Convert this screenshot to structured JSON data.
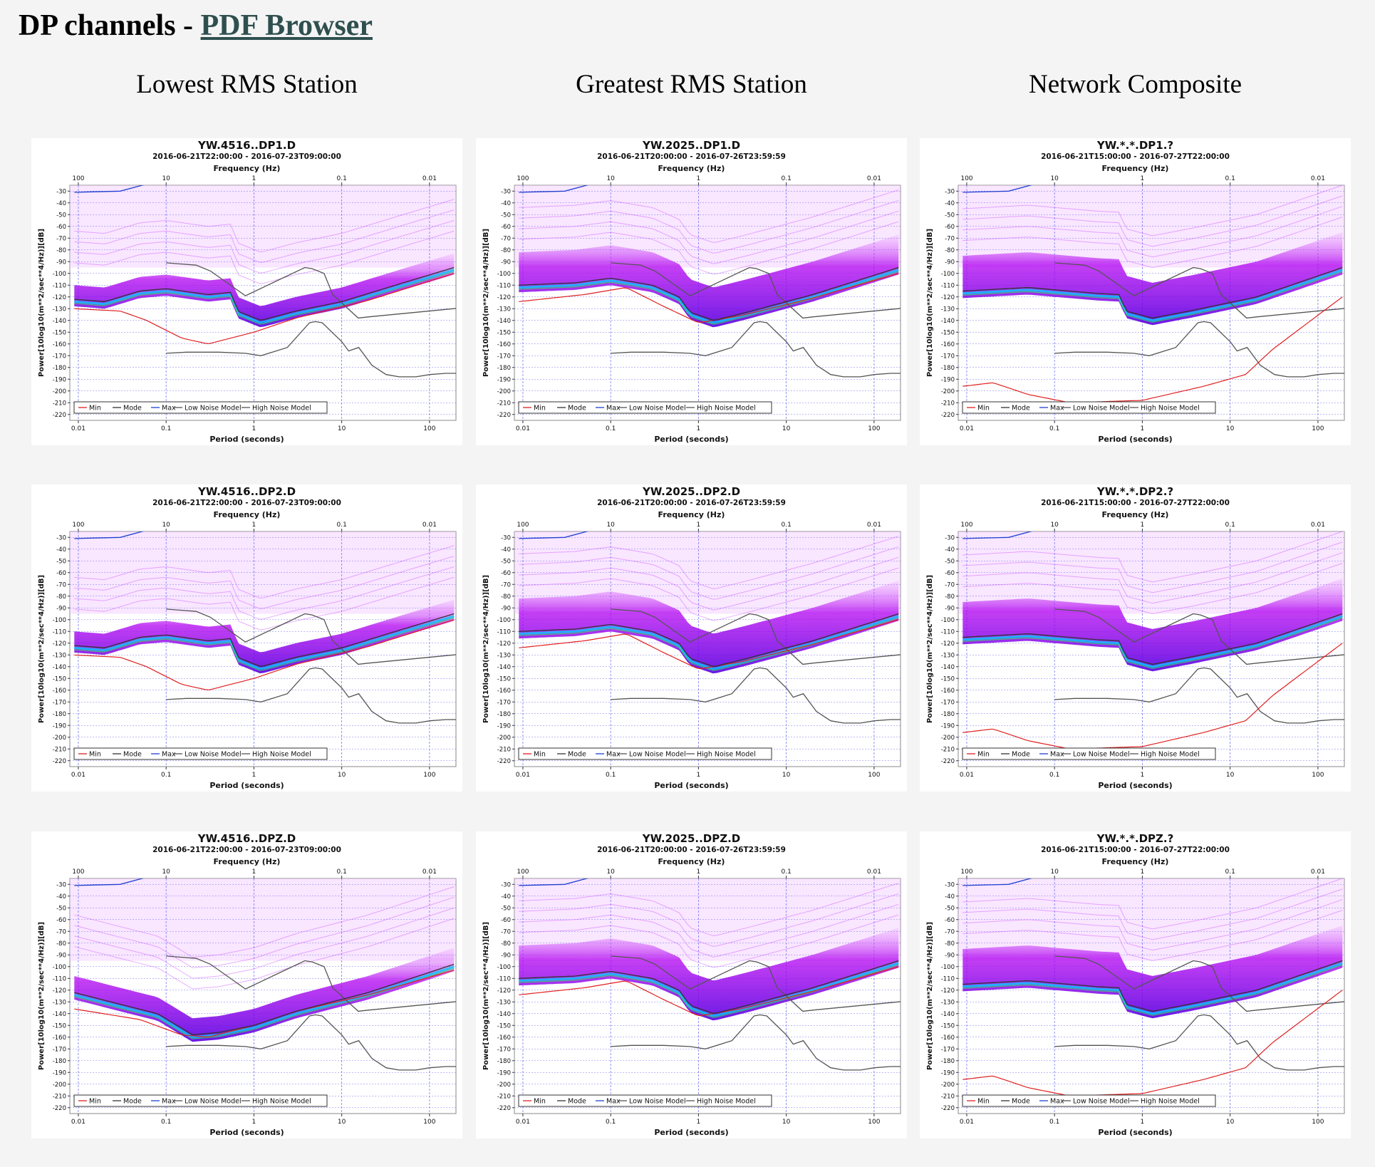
{
  "header": {
    "title": "DP channels - ",
    "link_label": "PDF Browser"
  },
  "columns": [
    "Lowest RMS Station",
    "Greatest RMS Station",
    "Network Composite"
  ],
  "colors": {
    "min": "#e02020",
    "mode": "#333333",
    "max": "#2040d0",
    "model": "#555555",
    "grid": "#7777ee",
    "pdf": "#a000f0"
  },
  "chart_data": [
    {
      "type": "line",
      "kind": "station-low",
      "title": "YW.4516..DP1.D",
      "subtitle": "2016-06-21T22:00:00 - 2016-07-23T09:00:00"
    },
    {
      "type": "line",
      "kind": "station-high",
      "title": "YW.2025..DP1.D",
      "subtitle": "2016-06-21T20:00:00 - 2016-07-26T23:59:59"
    },
    {
      "type": "line",
      "kind": "composite",
      "title": "YW.*.*.DP1.?",
      "subtitle": "2016-06-21T15:00:00 - 2016-07-27T22:00:00"
    },
    {
      "type": "line",
      "kind": "station-low",
      "title": "YW.4516..DP2.D",
      "subtitle": "2016-06-21T22:00:00 - 2016-07-23T09:00:00"
    },
    {
      "type": "line",
      "kind": "station-high",
      "title": "YW.2025..DP2.D",
      "subtitle": "2016-06-21T20:00:00 - 2016-07-26T23:59:59"
    },
    {
      "type": "line",
      "kind": "composite",
      "title": "YW.*.*.DP2.?",
      "subtitle": "2016-06-21T15:00:00 - 2016-07-27T22:00:00"
    },
    {
      "type": "line",
      "kind": "station-lowz",
      "title": "YW.4516..DPZ.D",
      "subtitle": "2016-06-21T22:00:00 - 2016-07-23T09:00:00"
    },
    {
      "type": "line",
      "kind": "station-high",
      "title": "YW.2025..DPZ.D",
      "subtitle": "2016-06-21T20:00:00 - 2016-07-26T23:59:59"
    },
    {
      "type": "line",
      "kind": "composite",
      "title": "YW.*.*.DPZ.?",
      "subtitle": "2016-06-21T15:00:00 - 2016-07-27T22:00:00"
    }
  ],
  "axes": {
    "xlabel": "Period (seconds)",
    "x2label": "Frequency (Hz)",
    "ylabel": "Power[10log10(m**2/sec**4/Hz)][dB]",
    "xlim": [
      0.008,
      200
    ],
    "ylim": [
      -225,
      -25
    ],
    "x_scale": "log",
    "grid": true,
    "x_ticks": [
      "0.01",
      "0.1",
      "1",
      "10",
      "100"
    ],
    "x2_ticks": [
      "100",
      "10",
      "1",
      "0.1",
      "0.01"
    ],
    "y_ticks": [
      -30,
      -40,
      -50,
      -60,
      -70,
      -80,
      -90,
      -100,
      -110,
      -120,
      -130,
      -140,
      -150,
      -160,
      -170,
      -180,
      -190,
      -200,
      -210,
      -220
    ]
  },
  "legend": [
    "Min",
    "Mode",
    "Max",
    "Low Noise Model",
    "High Noise Model"
  ],
  "models": {
    "low_noise": {
      "x": [
        0.1,
        0.17,
        0.4,
        0.8,
        1.2,
        2.4,
        4.3,
        5.0,
        6.0,
        10,
        12,
        15.6,
        22,
        32,
        45,
        70,
        101,
        154,
        200
      ],
      "y": [
        -168,
        -167,
        -167,
        -168,
        -170,
        -163,
        -142,
        -141,
        -142,
        -158,
        -166,
        -163,
        -178,
        -186,
        -188,
        -188,
        -186,
        -185,
        -185
      ]
    },
    "high_noise": {
      "x": [
        0.1,
        0.22,
        0.32,
        0.8,
        3.8,
        4.6,
        6.3,
        7.9,
        15.4,
        20,
        354
      ],
      "y": [
        -91,
        -93,
        -98,
        -119,
        -95,
        -96,
        -100,
        -118,
        -138,
        -137,
        -128
      ]
    }
  }
}
